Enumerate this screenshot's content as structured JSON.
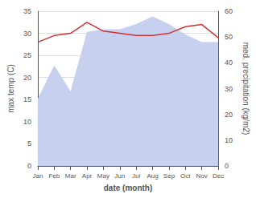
{
  "chart_data": {
    "type": "line",
    "categories": [
      "Jan",
      "Feb",
      "Mar",
      "Apr",
      "May",
      "Jun",
      "Jul",
      "Aug",
      "Sep",
      "Oct",
      "Nov",
      "Dec"
    ],
    "xlabel": "date (month)",
    "ylabel": "max temp (C)",
    "y2label": "med. precipitation (kg/m2)",
    "series": [
      {
        "type": "area",
        "axis": "y2",
        "color": "#c8d0f0",
        "values": [
          26,
          39,
          29,
          52,
          53,
          53,
          55,
          58,
          55,
          51,
          48,
          48
        ]
      },
      {
        "type": "line",
        "color": "#cc3333",
        "values": [
          28.0,
          29.5,
          30.0,
          32.5,
          30.5,
          30.0,
          29.5,
          29.5,
          30.0,
          31.5,
          32.0,
          29.0
        ]
      }
    ],
    "ylim": [
      0,
      35
    ],
    "yticks": [
      0,
      5,
      10,
      15,
      20,
      25,
      30,
      35
    ],
    "y2lim": [
      0,
      60
    ],
    "y2ticks": [
      0,
      10,
      20,
      30,
      40,
      50,
      60
    ],
    "grid": true
  }
}
